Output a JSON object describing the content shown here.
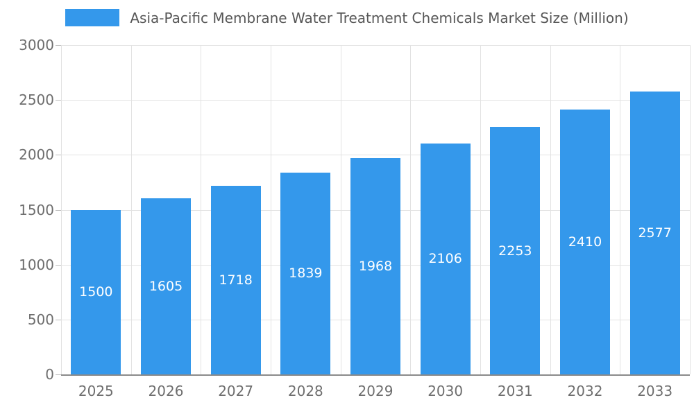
{
  "legend": {
    "label": "Asia-Pacific Membrane Water Treatment Chemicals Market Size (Million)"
  },
  "colors": {
    "bar": "#3498EB",
    "bar_label": "#ffffff",
    "grid": "#e2e2e2",
    "axis": "#8a8a8a",
    "tick_text": "#6e6e6e",
    "title_text": "#575757",
    "background": "#ffffff"
  },
  "chart_data": {
    "type": "bar",
    "title": "Asia-Pacific Membrane Water Treatment Chemicals Market Size (Million)",
    "categories": [
      "2025",
      "2026",
      "2027",
      "2028",
      "2029",
      "2030",
      "2031",
      "2032",
      "2033"
    ],
    "values": [
      1500,
      1605,
      1718,
      1839,
      1968,
      2106,
      2253,
      2410,
      2577
    ],
    "xlabel": "",
    "ylabel": "",
    "ylim": [
      0,
      3000
    ],
    "yticks": [
      0,
      500,
      1000,
      1500,
      2000,
      2500,
      3000
    ],
    "grid": true,
    "legend_position": "top",
    "value_labels": "inside-center",
    "bar_color": "#3498EB",
    "label_color": "#ffffff"
  }
}
